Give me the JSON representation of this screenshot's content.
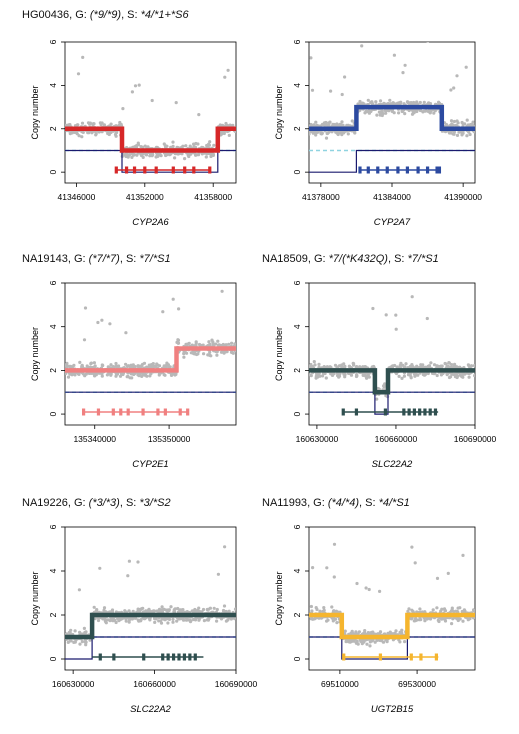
{
  "figure": {
    "panels": [
      {
        "sample": "HG00436",
        "g_label": ", G: ",
        "genotype": "(*9/*9)",
        "s_label": ", S: ",
        "star": "*4/*1+*S6",
        "gene": "CYP2A6",
        "ylabel": "Copy number",
        "xticks": [
          "41346000",
          "41352000",
          "41358000"
        ],
        "yticks": [
          "0",
          "2",
          "4",
          "6"
        ]
      },
      {
        "sample": "",
        "g_label": "",
        "genotype": "",
        "s_label": "",
        "star": "",
        "gene": "CYP2A7",
        "ylabel": "Copy number",
        "xticks": [
          "41378000",
          "41384000",
          "41390000"
        ],
        "yticks": [
          "0",
          "2",
          "4",
          "6"
        ]
      },
      {
        "sample": "NA19143",
        "g_label": ", G: ",
        "genotype": "(*7/*7)",
        "s_label": ", S: ",
        "star": "*7/*S1",
        "gene": "CYP2E1",
        "ylabel": "Copy number",
        "xticks": [
          "135340000",
          "135350000"
        ],
        "yticks": [
          "0",
          "2",
          "4",
          "6"
        ]
      },
      {
        "sample": "NA18509",
        "g_label": ", G: ",
        "genotype": "*7/(*K432Q)",
        "s_label": ", S: ",
        "star": "*7/*S1",
        "gene": "SLC22A2",
        "ylabel": "Copy number",
        "xticks": [
          "160630000",
          "160660000",
          "160690000"
        ],
        "yticks": [
          "0",
          "2",
          "4",
          "6"
        ]
      },
      {
        "sample": "NA19226",
        "g_label": ", G: ",
        "genotype": "(*3/*3)",
        "s_label": ", S: ",
        "star": "*3/*S2",
        "gene": "SLC22A2",
        "ylabel": "Copy number",
        "xticks": [
          "160630000",
          "160660000",
          "160690000"
        ],
        "yticks": [
          "0",
          "2",
          "4",
          "6"
        ]
      },
      {
        "sample": "NA11993",
        "g_label": ", G: ",
        "genotype": "(*4/*4)",
        "s_label": ", S: ",
        "star": "*4/*S1",
        "gene": "UGT2B15",
        "ylabel": "Copy number",
        "xticks": [
          "69510000",
          "69530000"
        ],
        "yticks": [
          "0",
          "2",
          "4",
          "6"
        ]
      }
    ]
  },
  "chart_data": [
    {
      "type": "scatter",
      "gene": "CYP2A6",
      "xlim": [
        41345000,
        41360000
      ],
      "ylim": [
        -0.5,
        6
      ],
      "color": "#d62728",
      "segments": [
        [
          41345000,
          41350000,
          2
        ],
        [
          41350000,
          41358400,
          1
        ],
        [
          41358400,
          41360000,
          2
        ]
      ],
      "structure": [
        [
          41345000,
          41350000,
          1
        ],
        [
          41350000,
          41358400,
          0
        ],
        [
          41358400,
          41360000,
          1
        ]
      ],
      "reference": 1,
      "exons": [
        41349500,
        41350400,
        41351100,
        41352000,
        41353000,
        41354500,
        41355500,
        41356300,
        41357700
      ],
      "gene_span": [
        41349500,
        41357700
      ]
    },
    {
      "type": "scatter",
      "gene": "CYP2A7",
      "xlim": [
        41377000,
        41391000
      ],
      "ylim": [
        -0.5,
        6
      ],
      "color": "#2c4aa0",
      "segments": [
        [
          41377000,
          41381000,
          2
        ],
        [
          41381000,
          41388200,
          3
        ],
        [
          41388200,
          41391000,
          2
        ]
      ],
      "structure": [
        [
          41377000,
          41381000,
          0
        ],
        [
          41381000,
          41391000,
          1
        ]
      ],
      "reference": 1,
      "exons": [
        41381300,
        41382000,
        41382800,
        41383600,
        41384500,
        41385300,
        41386200,
        41387000,
        41387800,
        41388000
      ],
      "gene_span": [
        41381300,
        41388000
      ]
    },
    {
      "type": "scatter",
      "gene": "CYP2E1",
      "xlim": [
        135336000,
        135359000
      ],
      "ylim": [
        -0.5,
        6
      ],
      "color": "#f08080",
      "segments": [
        [
          135336000,
          135351000,
          2
        ],
        [
          135351000,
          135359000,
          3
        ]
      ],
      "structure": [
        [
          135336000,
          135359000,
          1
        ]
      ],
      "reference": 1,
      "exons": [
        135338500,
        135340500,
        135342500,
        135343500,
        135344500,
        135346500,
        135348500,
        135349500,
        135351500,
        135352500
      ],
      "gene_span": [
        135338500,
        135352500
      ]
    },
    {
      "type": "scatter",
      "gene": "SLC22A2",
      "xlim": [
        160627000,
        160690000
      ],
      "ylim": [
        -0.5,
        6
      ],
      "color": "#2f4f4f",
      "segments": [
        [
          160627000,
          160652000,
          2
        ],
        [
          160652000,
          160657000,
          1
        ],
        [
          160657000,
          160690000,
          2
        ]
      ],
      "structure": [
        [
          160627000,
          160652000,
          1
        ],
        [
          160652000,
          160657000,
          0
        ],
        [
          160657000,
          160690000,
          1
        ]
      ],
      "reference": 1,
      "exons": [
        160640000,
        160645000,
        160656000,
        160663000,
        160665000,
        160667000,
        160669000,
        160671000,
        160673000,
        160675000
      ],
      "gene_span": [
        160640000,
        160676000
      ]
    },
    {
      "type": "scatter",
      "gene": "SLC22A2",
      "xlim": [
        160627000,
        160690000
      ],
      "ylim": [
        -0.5,
        6
      ],
      "color": "#2f4f4f",
      "segments": [
        [
          160627000,
          160637000,
          1
        ],
        [
          160637000,
          160690000,
          2
        ]
      ],
      "structure": [
        [
          160627000,
          160637000,
          0
        ],
        [
          160637000,
          160690000,
          1
        ]
      ],
      "reference": 1,
      "exons": [
        160640000,
        160645000,
        160656000,
        160663000,
        160665000,
        160667000,
        160669000,
        160671000,
        160673000,
        160675000
      ],
      "gene_span": [
        160637000,
        160678000
      ]
    },
    {
      "type": "scatter",
      "gene": "UGT2B15",
      "xlim": [
        69502000,
        69545000
      ],
      "ylim": [
        -0.5,
        6
      ],
      "color": "#f5b52e",
      "segments": [
        [
          69502000,
          69510500,
          2
        ],
        [
          69510500,
          69527500,
          1
        ],
        [
          69527500,
          69545000,
          2
        ]
      ],
      "structure": [
        [
          69502000,
          69510500,
          1
        ],
        [
          69510500,
          69527500,
          0
        ],
        [
          69527500,
          69545000,
          1
        ]
      ],
      "reference": 1,
      "exons": [
        69511000,
        69520500,
        69528500,
        69531000,
        69535000
      ],
      "gene_span": [
        69511000,
        69535500
      ]
    }
  ]
}
